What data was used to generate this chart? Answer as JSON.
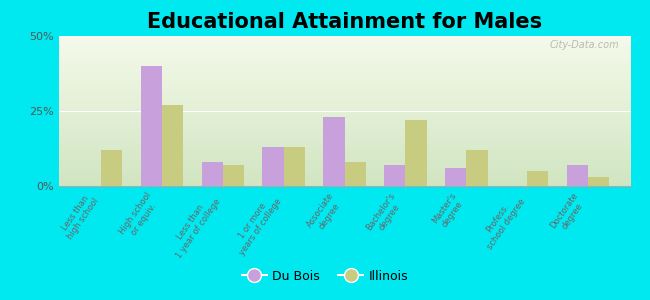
{
  "title": "Educational Attainment for Males",
  "categories": [
    "Less than\nhigh school",
    "High school\nor equiv.",
    "Less than\n1 year of college",
    "1 or more\nyears of college",
    "Associate\ndegree",
    "Bachelor's\ndegree",
    "Master's\ndegree",
    "Profess.\nschool degree",
    "Doctorate\ndegree"
  ],
  "du_bois": [
    0,
    40,
    8,
    13,
    23,
    7,
    6,
    0,
    7
  ],
  "illinois": [
    12,
    27,
    7,
    13,
    8,
    22,
    12,
    5,
    3
  ],
  "du_bois_color": "#c8a0dc",
  "illinois_color": "#c8cc80",
  "background_outer": "#00e8f0",
  "ylim": [
    0,
    50
  ],
  "yticks": [
    0,
    25,
    50
  ],
  "ytick_labels": [
    "0%",
    "25%",
    "50%"
  ],
  "bar_width": 0.35,
  "legend_du_bois": "Du Bois",
  "legend_illinois": "Illinois",
  "title_fontsize": 15,
  "tick_fontsize": 6.0,
  "legend_fontsize": 9,
  "watermark": "City-Data.com"
}
